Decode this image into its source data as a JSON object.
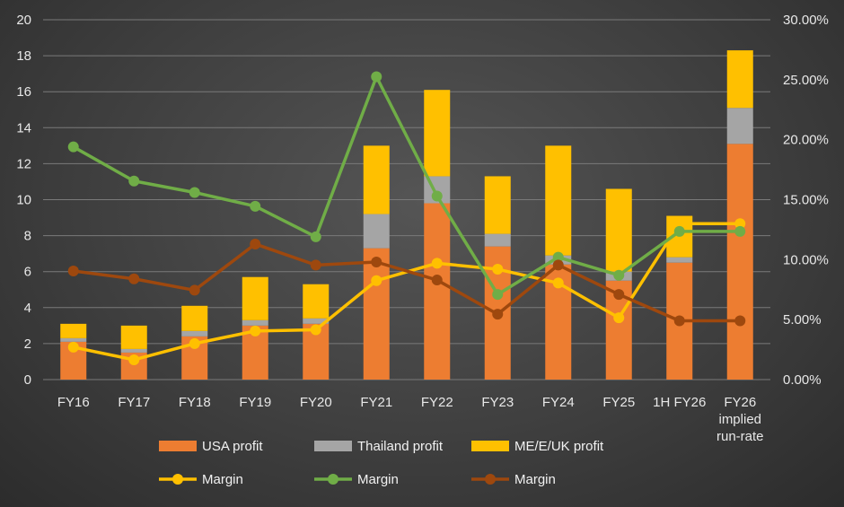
{
  "chart_data": {
    "type": "bar",
    "stacked": true,
    "categories": [
      "FY16",
      "FY17",
      "FY18",
      "FY19",
      "FY20",
      "FY21",
      "FY22",
      "FY23",
      "FY24",
      "FY25",
      "1H FY26",
      "FY26 implied run-rate"
    ],
    "category_lines": [
      [
        "FY16"
      ],
      [
        "FY17"
      ],
      [
        "FY18"
      ],
      [
        "FY19"
      ],
      [
        "FY20"
      ],
      [
        "FY21"
      ],
      [
        "FY22"
      ],
      [
        "FY23"
      ],
      [
        "FY24"
      ],
      [
        "FY25"
      ],
      [
        "1H FY26"
      ],
      [
        "FY26",
        "implied",
        "run-rate"
      ]
    ],
    "ylim": [
      0,
      20
    ],
    "y2lim": [
      0,
      0.3
    ],
    "yticks": [
      0,
      2,
      4,
      6,
      8,
      10,
      12,
      14,
      16,
      18,
      20
    ],
    "y2ticks": [
      "0.00%",
      "5.00%",
      "10.00%",
      "15.00%",
      "20.00%",
      "25.00%",
      "30.00%"
    ],
    "grid": true,
    "legend_position": "bottom",
    "bar_series": [
      {
        "name": "USA profit",
        "color": "#ed7d31",
        "values": [
          2.1,
          1.5,
          2.4,
          3.0,
          3.1,
          7.3,
          9.8,
          7.4,
          6.4,
          5.5,
          6.5,
          13.1
        ]
      },
      {
        "name": "Thailand profit",
        "color": "#a5a5a5",
        "values": [
          0.2,
          0.2,
          0.3,
          0.3,
          0.3,
          1.9,
          1.5,
          0.7,
          0.5,
          0.5,
          0.3,
          2.0
        ]
      },
      {
        "name": "ME/E/UK profit",
        "color": "#ffc000",
        "values": [
          0.8,
          1.3,
          1.4,
          2.4,
          1.9,
          3.8,
          4.8,
          3.2,
          6.1,
          4.6,
          2.3,
          3.2
        ]
      }
    ],
    "line_series": [
      {
        "name": "Margin",
        "color": "#ffc000",
        "axis": "right",
        "values": [
          0.027,
          0.0165,
          0.03,
          0.0405,
          0.0415,
          0.0825,
          0.097,
          0.092,
          0.0805,
          0.0515,
          0.13,
          0.13
        ]
      },
      {
        "name": "Margin",
        "color": "#70ad47",
        "axis": "right",
        "values": [
          0.194,
          0.1655,
          0.156,
          0.1445,
          0.119,
          0.2525,
          0.153,
          0.071,
          0.102,
          0.087,
          0.1235,
          0.1235
        ]
      },
      {
        "name": "Margin",
        "color": "#9e480e",
        "axis": "right",
        "values": [
          0.0905,
          0.084,
          0.0745,
          0.113,
          0.0955,
          0.098,
          0.083,
          0.0545,
          0.0955,
          0.071,
          0.049,
          0.049
        ]
      }
    ]
  }
}
